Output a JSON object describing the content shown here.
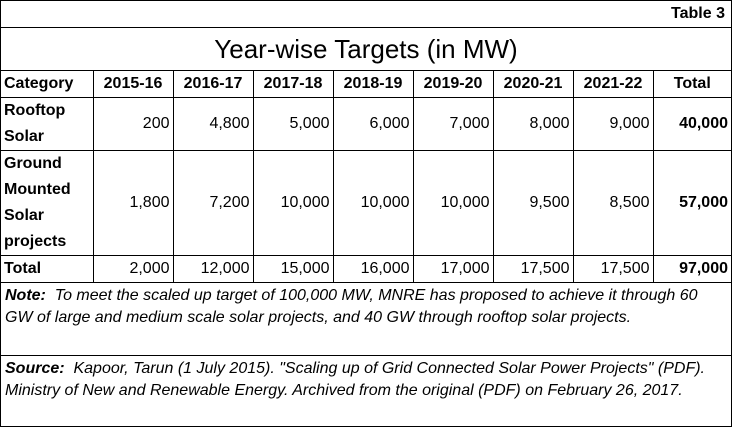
{
  "table_label": "Table 3",
  "title": "Year-wise Targets (in MW)",
  "columns": [
    "Category",
    "2015-16",
    "2016-17",
    "2017-18",
    "2018-19",
    "2019-20",
    "2020-21",
    "2021-22",
    "Total"
  ],
  "rows": [
    {
      "category_lines": [
        "Rooftop",
        "Solar"
      ],
      "values": [
        "200",
        "4,800",
        "5,000",
        "6,000",
        "7,000",
        "8,000",
        "9,000"
      ],
      "total": "40,000"
    },
    {
      "category_lines": [
        "Ground",
        "Mounted",
        "Solar",
        "projects"
      ],
      "values": [
        "1,800",
        "7,200",
        "10,000",
        "10,000",
        "10,000",
        "9,500",
        "8,500"
      ],
      "total": "57,000"
    },
    {
      "category_lines": [
        "Total"
      ],
      "values": [
        "2,000",
        "12,000",
        "15,000",
        "16,000",
        "17,000",
        "17,500",
        "17,500"
      ],
      "total": "97,000"
    }
  ],
  "note": {
    "label": "Note:",
    "text": "To meet the scaled up target of 100,000 MW, MNRE has proposed to achieve it through 60 GW of large and medium scale solar projects, and 40 GW through rooftop solar projects."
  },
  "source": {
    "label": "Source:",
    "text": "Kapoor, Tarun (1 July 2015). \"Scaling up of Grid Connected Solar Power Projects\" (PDF). Ministry of New and Renewable Energy. Archived from the original (PDF) on February 26, 2017."
  }
}
